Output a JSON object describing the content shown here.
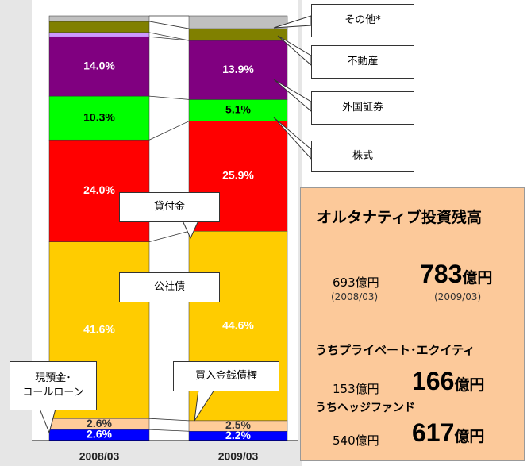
{
  "chart_data": {
    "type": "stacked_bar",
    "categories": [
      "2008/03",
      "2009/03"
    ],
    "ylim": [
      0,
      100
    ],
    "series": [
      {
        "name": "現預金･\nコールローン",
        "color": "#0000ff",
        "label_color": "#ffffff",
        "values": [
          2.6,
          2.2
        ],
        "value_labels": [
          "2.6%",
          "2.2%"
        ]
      },
      {
        "name": "買入金銭債権",
        "color": "#ffcc99",
        "label_color": "#333333",
        "values": [
          2.6,
          2.5
        ],
        "value_labels": [
          "2.6%",
          "2.5%"
        ]
      },
      {
        "name": "公社債",
        "color": "#ffcc00",
        "label_color": "#ffffff",
        "values": [
          41.6,
          44.6
        ],
        "value_labels": [
          "41.6%",
          "44.6%"
        ]
      },
      {
        "name": "貸付金",
        "color": "#ff0000",
        "label_color": "#ffffff",
        "values": [
          24.0,
          25.9
        ],
        "value_labels": [
          "24.0%",
          "25.9%"
        ]
      },
      {
        "name": "株式",
        "color": "#00ff00",
        "label_color": "#000000",
        "values": [
          10.3,
          5.1
        ],
        "value_labels": [
          "10.3%",
          "5.1%"
        ]
      },
      {
        "name": "外国証券",
        "color": "#800080",
        "label_color": "#ffffff",
        "values": [
          14.0,
          13.9
        ],
        "value_labels": [
          "14.0%",
          "13.9%"
        ]
      },
      {
        "color": "#cc99ff",
        "values": [
          1.0,
          0
        ]
      },
      {
        "name": "不動産",
        "color": "#808000",
        "values": [
          2.6,
          2.8
        ]
      },
      {
        "name": "その他*",
        "color": "#c0c0c0",
        "values": [
          1.3,
          3.0
        ]
      }
    ]
  },
  "summary": {
    "title": "オルタナティブ投資残高",
    "total": {
      "before": "693億円",
      "before_date": "(2008/03)",
      "after_amount": "783",
      "after_unit": "億円",
      "after_date": "(2009/03)"
    },
    "pe": {
      "label": "うちプライベート･エクイティ",
      "before": "153億円",
      "after_amount": "166",
      "after_unit": "億円"
    },
    "hf": {
      "label": "うちヘッジファンド",
      "before": "540億円",
      "after_amount": "617",
      "after_unit": "億円"
    }
  }
}
